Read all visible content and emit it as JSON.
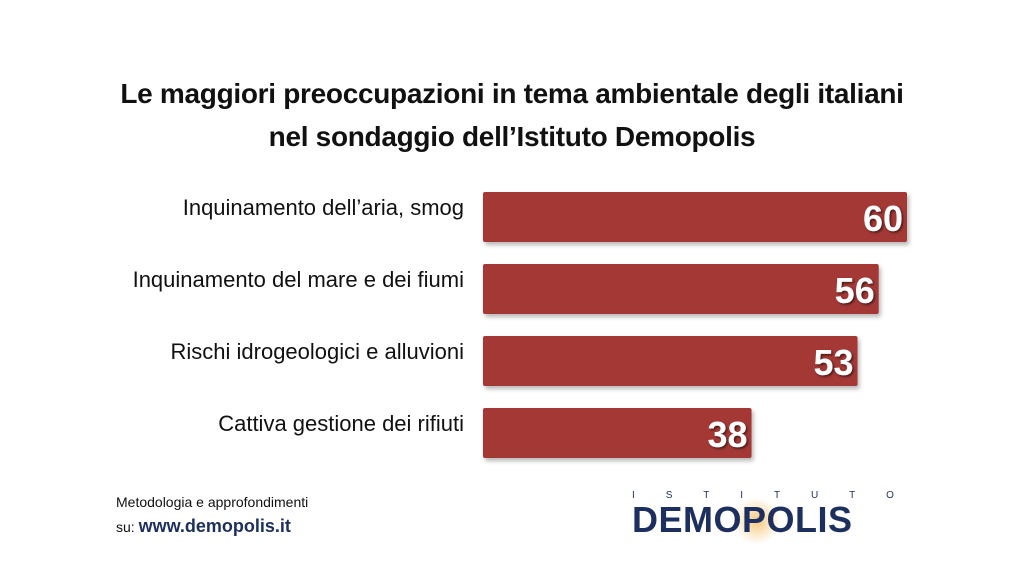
{
  "title": {
    "line1": "Le maggiori preoccupazioni in tema ambientale degli italiani",
    "line2": "nel sondaggio dell’Istituto Demopolis"
  },
  "chart_data": {
    "type": "bar",
    "orientation": "horizontal",
    "categories": [
      "Inquinamento dell’aria, smog",
      "Inquinamento del mare e dei fiumi",
      "Rischi idrogeologici e alluvioni",
      "Cattiva gestione dei rifiuti"
    ],
    "values": [
      60,
      56,
      53,
      38
    ],
    "value_labels": [
      "60",
      "56",
      "53",
      "38"
    ],
    "xlim": [
      0,
      60
    ],
    "grid": false,
    "legend": "none",
    "bar_color": "#a33836"
  },
  "footer": {
    "line1": "Metodologia e approfondimenti",
    "prefix": "su:",
    "url": "www.demopolis.it"
  },
  "logo": {
    "top_letters": [
      "I",
      "S",
      "T",
      "I",
      "T",
      "U",
      "T",
      "O"
    ],
    "name": "DEMOPOLIS",
    "color": "#1d2f5e",
    "accent": "#f0aa3c"
  }
}
